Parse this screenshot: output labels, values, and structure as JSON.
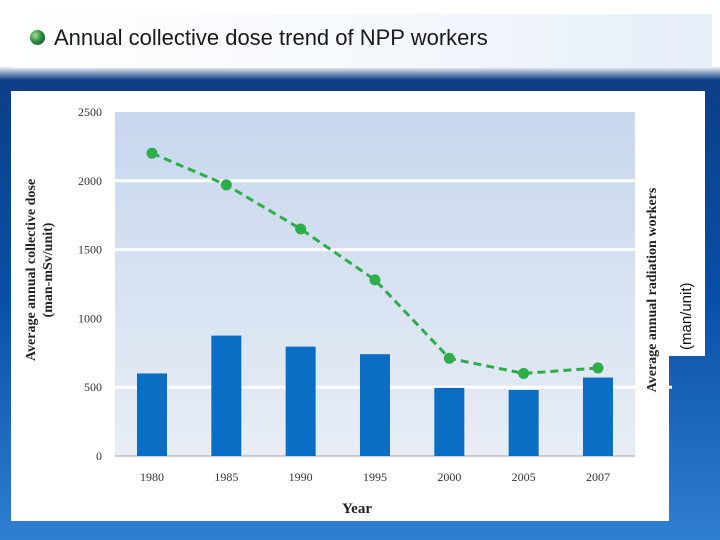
{
  "header": {
    "title": "Annual collective dose trend of NPP workers",
    "bullet_icon": "green-globe-bullet-icon"
  },
  "right_axis_unit": "(man/unit)",
  "colors": {
    "bar": "#0a6fc4",
    "line": "#2dae4a",
    "plot_bg_top": "#c7d7ee",
    "plot_bg_bottom": "#e8edf5",
    "slide_blue": "#0a4fa6"
  },
  "chart_data": {
    "type": "bar",
    "categories": [
      "1980",
      "1985",
      "1990",
      "1995",
      "2000",
      "2005",
      "2007"
    ],
    "series": [
      {
        "type": "bar",
        "axis": "right",
        "values": [
          600,
          875,
          795,
          740,
          495,
          480,
          570
        ]
      },
      {
        "type": "line",
        "axis": "left",
        "style": "dashed",
        "marker": "circle",
        "values": [
          2200,
          1970,
          1650,
          1280,
          710,
          600,
          640
        ]
      }
    ],
    "xlabel": "Year",
    "ylabel_lines": [
      "Average annual collective dose",
      "(man-mSv/unit)"
    ],
    "y2label": "Average annual radiation workers",
    "ylim": [
      0,
      2500
    ],
    "yticks": [
      0,
      500,
      1000,
      1500,
      2000,
      2500
    ],
    "legend": "none",
    "grid": "horizontal at 500, 1500, 2000"
  }
}
